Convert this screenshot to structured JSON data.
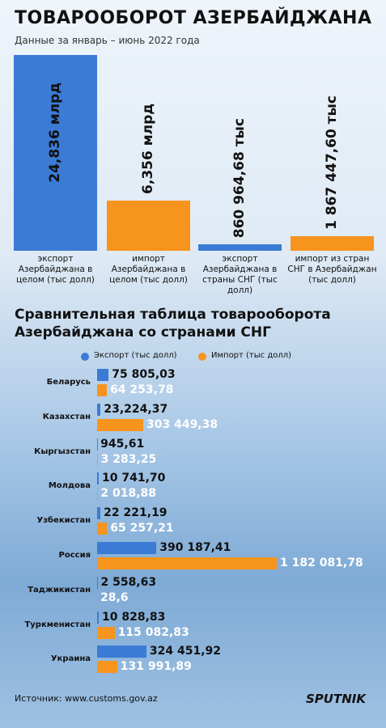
{
  "header": {
    "title": "ТОВАРООБОРОТ АЗЕРБАЙДЖАНА",
    "subtitle": "Данные за январь – июнь 2022 года"
  },
  "chart_data": [
    {
      "type": "bar",
      "categories": [
        "экспорт Азербайджана в целом (тыс долл)",
        "импорт Азербайджана в целом (тыс долл)",
        "экспорт Азербайджана в страны СНГ (тыс долл)",
        "импорт из стран СНГ в Азербайджан (тыс долл)"
      ],
      "values": [
        24836000,
        6356000,
        860964.68,
        1867447.6
      ],
      "value_labels": [
        "24,836 млрд",
        "6,356 млрд",
        "860 964,68 тыс",
        "1 867 447,60 тыс"
      ],
      "colors": [
        "#3a7bd5",
        "#f7941d",
        "#3a7bd5",
        "#f7941d"
      ]
    },
    {
      "type": "hbar",
      "title": "Сравнительная таблица товарооборота Азербайджана со странами СНГ",
      "categories": [
        "Беларусь",
        "Казахстан",
        "Кыргызстан",
        "Молдова",
        "Узбекистан",
        "Россия",
        "Таджикистан",
        "Туркменистан",
        "Украина"
      ],
      "legend": "top",
      "series": [
        {
          "name": "Экспорт (тыс долл)",
          "color": "#3a7bd5",
          "values": [
            75805.03,
            23224.37,
            945.61,
            10741.7,
            22221.19,
            390187.41,
            2558.63,
            10828.83,
            324451.92
          ],
          "value_labels": [
            "75 805,03",
            "23,224,37",
            "945,61",
            "10 741,70",
            "22 221,19",
            "390 187,41",
            "2 558,63",
            "10 828,83",
            "324 451,92"
          ]
        },
        {
          "name": "Импорт (тыс долл)",
          "color": "#f7941d",
          "values": [
            64253.78,
            303449.38,
            3283.25,
            2018.88,
            65257.21,
            1182081.78,
            28.6,
            115082.83,
            131991.89
          ],
          "value_labels": [
            "64 253,78",
            "303 449,38",
            "3 283,25",
            "2 018,88",
            "65 257,21",
            "1 182 081,78",
            "28,6",
            "115 082,83",
            "131 991,89"
          ]
        }
      ]
    }
  ],
  "footer": {
    "source": "Источник: www.customs.gov.az",
    "logo": "SPUTNIK"
  }
}
